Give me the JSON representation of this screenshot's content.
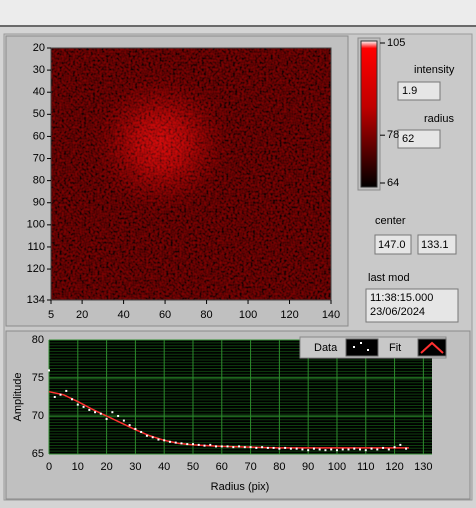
{
  "image_plot": {
    "xlim": [
      5,
      140
    ],
    "ylim": [
      20,
      134
    ],
    "xticks": [
      5,
      20,
      40,
      60,
      80,
      100,
      120,
      140
    ],
    "yticks": [
      20,
      30,
      40,
      50,
      60,
      70,
      80,
      90,
      100,
      110,
      120,
      134
    ]
  },
  "colorbar": {
    "lim": [
      64,
      105
    ],
    "ticks": [
      64,
      78,
      105
    ]
  },
  "indicators": {
    "intensity_label": "intensity",
    "intensity": "1.9",
    "radius_label": "radius",
    "radius": "62",
    "center_label": "center",
    "center_x": "147.0",
    "center_y": "133.1",
    "last_mod_label": "last mod",
    "time": "11:38:15.000",
    "date": "23/06/2024"
  },
  "chart_data": {
    "type": "scatter",
    "x_label": "Radius (pix)",
    "y_label": "Amplitude",
    "xlim": [
      0,
      133
    ],
    "ylim": [
      65,
      80
    ],
    "xticks": [
      0,
      10,
      20,
      30,
      40,
      50,
      60,
      70,
      80,
      90,
      100,
      110,
      120,
      130
    ],
    "yticks": [
      65,
      70,
      75,
      80
    ],
    "grid": true,
    "series": [
      {
        "name": "Data",
        "color": "#ffffff",
        "x": [
          0,
          2,
          4,
          6,
          8,
          10,
          12,
          14,
          16,
          18,
          20,
          22,
          24,
          26,
          28,
          30,
          32,
          34,
          36,
          38,
          40,
          42,
          44,
          46,
          48,
          50,
          52,
          54,
          56,
          58,
          60,
          62,
          64,
          66,
          68,
          70,
          72,
          74,
          76,
          78,
          80,
          82,
          84,
          86,
          88,
          90,
          92,
          94,
          96,
          98,
          100,
          102,
          104,
          106,
          108,
          110,
          112,
          114,
          116,
          118,
          120,
          122,
          124
        ],
        "values": [
          76.0,
          72.5,
          72.8,
          73.3,
          72.2,
          71.5,
          71.2,
          70.8,
          70.5,
          70.3,
          69.6,
          70.5,
          70.0,
          69.4,
          68.8,
          68.3,
          67.9,
          67.4,
          67.2,
          66.9,
          66.8,
          66.6,
          66.5,
          66.4,
          66.3,
          66.3,
          66.2,
          66.1,
          66.2,
          66.0,
          66.0,
          66.0,
          65.9,
          66.0,
          65.9,
          65.9,
          65.8,
          65.9,
          65.8,
          65.8,
          65.7,
          65.8,
          65.7,
          65.7,
          65.6,
          65.5,
          65.7,
          65.6,
          65.5,
          65.6,
          65.5,
          65.6,
          65.6,
          65.7,
          65.6,
          65.5,
          65.7,
          65.6,
          65.8,
          65.6,
          65.9,
          66.2,
          65.7
        ]
      },
      {
        "name": "Fit",
        "color": "#ff3030",
        "x": [
          0,
          5,
          10,
          15,
          20,
          25,
          30,
          35,
          40,
          45,
          50,
          60,
          70,
          80,
          90,
          100,
          110,
          120,
          125
        ],
        "values": [
          73.2,
          72.8,
          71.9,
          70.9,
          70.0,
          69.1,
          68.2,
          67.4,
          66.8,
          66.4,
          66.2,
          66.0,
          65.9,
          65.8,
          65.8,
          65.8,
          65.8,
          65.8,
          65.8
        ]
      }
    ]
  }
}
